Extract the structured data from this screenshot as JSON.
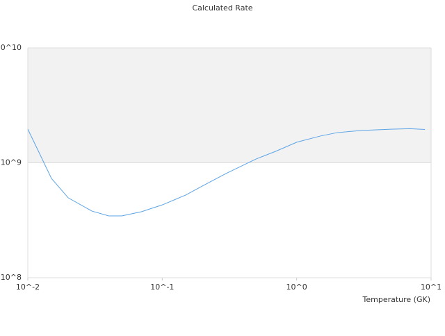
{
  "chart_data": {
    "type": "line",
    "title": "Calculated Rate",
    "x_label": "Temperature (GK)",
    "log_x": true,
    "log_y": true,
    "xlim": [
      0.01,
      10
    ],
    "ylim": [
      100000000,
      10000000000
    ],
    "xticks": [
      {
        "value": 0.01,
        "label": "10^-2"
      },
      {
        "value": 0.1,
        "label": "10^-1"
      },
      {
        "value": 1,
        "label": "10^0"
      },
      {
        "value": 10,
        "label": "10^1"
      }
    ],
    "yticks": [
      {
        "value": 100000000,
        "label": "10^8"
      },
      {
        "value": 1000000000,
        "label": "10^9"
      },
      {
        "value": 10000000000,
        "label": "10^10"
      }
    ],
    "band_color": "#f2f2f2",
    "series": [
      {
        "color": "#5ba3e6",
        "x": [
          0.01,
          0.012,
          0.015,
          0.02,
          0.03,
          0.04,
          0.05,
          0.07,
          0.1,
          0.15,
          0.2,
          0.3,
          0.5,
          0.7,
          1,
          1.5,
          2,
          3,
          5,
          7,
          9
        ],
        "values": [
          1960000000,
          1260000000,
          730000000,
          495000000,
          380000000,
          345000000,
          345000000,
          375000000,
          430000000,
          525000000,
          630000000,
          810000000,
          1080000000,
          1260000000,
          1510000000,
          1710000000,
          1830000000,
          1910000000,
          1960000000,
          1980000000,
          1950000000
        ]
      }
    ]
  }
}
